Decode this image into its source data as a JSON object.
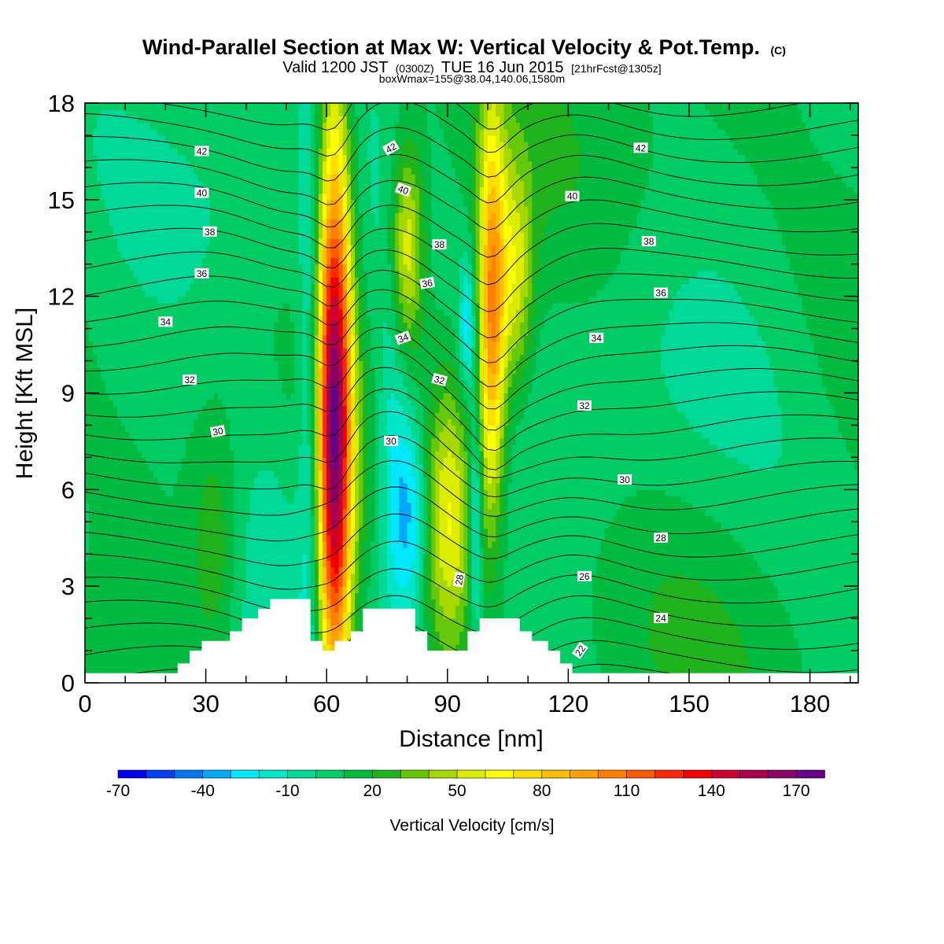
{
  "title": {
    "main": "Wind-Parallel Section at Max W: Vertical Velocity & Pot.Temp.",
    "main_mark": "(C)",
    "valid_prefix": "Valid 1200 JST",
    "valid_small": "(0300Z)",
    "valid_date": "TUE 16 Jun 2015",
    "forecast": "[21hrFcst@1305z]",
    "boxmax": "boxWmax=155@38.04,140.06,1580m"
  },
  "colors": {
    "palette": [
      "#0000f0",
      "#0040f0",
      "#0078f0",
      "#00aaf8",
      "#00e8ff",
      "#00e6c8",
      "#00d898",
      "#00cc66",
      "#00bb40",
      "#1fb41e",
      "#66c80a",
      "#a6d800",
      "#dcec00",
      "#ffff00",
      "#ffde00",
      "#ffbe00",
      "#ffa000",
      "#ff8000",
      "#ff5a00",
      "#ff2800",
      "#ee0000",
      "#cc0030",
      "#aa0050",
      "#880066",
      "#660088"
    ],
    "terrain": "#ffffff",
    "contour": "#000000",
    "background": "#00c060"
  },
  "chart_data": {
    "type": "heatmap",
    "xlabel": "Distance [nm]",
    "ylabel": "Height [Kft MSL]",
    "xlim": [
      0,
      192
    ],
    "ylim": [
      0,
      18
    ],
    "xticks": [
      0,
      30,
      60,
      90,
      120,
      150,
      180
    ],
    "yticks": [
      0,
      3,
      6,
      9,
      12,
      15,
      18
    ],
    "colorbar": {
      "label": "Vertical Velocity [cm/s]",
      "min": -70,
      "max": 180,
      "step": 10,
      "tick_labels": [
        -70,
        -40,
        -10,
        20,
        50,
        80,
        110,
        140,
        170
      ]
    },
    "vertical_velocity_features": [
      {
        "name": "updraft-1",
        "x": 62,
        "y": 8,
        "peak": 155,
        "x_halfwidth": 3,
        "y_halfwidth": 6.8
      },
      {
        "name": "updraft-2",
        "x": 101,
        "y": 11.5,
        "peak": 95,
        "x_halfwidth": 2.4,
        "y_halfwidth": 4.2
      },
      {
        "name": "updraft-3",
        "x": 80,
        "y": 13.5,
        "peak": 55,
        "x_halfwidth": 3,
        "y_halfwidth": 2.3
      },
      {
        "name": "updraft-4",
        "x": 107,
        "y": 12.5,
        "peak": 45,
        "x_halfwidth": 3,
        "y_halfwidth": 2.5
      },
      {
        "name": "updraft-5",
        "x": 90,
        "y": 5.2,
        "peak": 55,
        "x_halfwidth": 5,
        "y_halfwidth": 3.2
      },
      {
        "name": "updraft-6",
        "x": 32,
        "y": 4,
        "peak": 22,
        "x_halfwidth": 4,
        "y_halfwidth": 2.5
      },
      {
        "name": "downdraft-1",
        "x": 81,
        "y": 5.2,
        "peak": -50,
        "x_halfwidth": 4,
        "y_halfwidth": 2.5
      },
      {
        "name": "downdraft-2",
        "x": 97,
        "y": 5,
        "peak": -45,
        "x_halfwidth": 1.2,
        "y_halfwidth": 2.5
      },
      {
        "name": "downdraft-3",
        "x": 95,
        "y": 11,
        "peak": -35,
        "x_halfwidth": 1.5,
        "y_halfwidth": 1.5
      },
      {
        "name": "downdraft-4",
        "x": 56,
        "y": 8.5,
        "peak": -30,
        "x_halfwidth": 2,
        "y_halfwidth": 6
      },
      {
        "name": "downdraft-5",
        "x": 76,
        "y": 8,
        "peak": -22,
        "x_halfwidth": 3,
        "y_halfwidth": 4
      },
      {
        "name": "downdraft-6",
        "x": 47,
        "y": 6,
        "peak": -15,
        "x_halfwidth": 8,
        "y_halfwidth": 3
      }
    ],
    "potential_temperature_contours": {
      "unit": "C",
      "interval": 1,
      "range": [
        19,
        44
      ],
      "labels": [
        {
          "text": "42",
          "x": 29,
          "y": 16.5,
          "angle": 0
        },
        {
          "text": "40",
          "x": 29,
          "y": 15.2,
          "angle": 0
        },
        {
          "text": "38",
          "x": 31,
          "y": 14,
          "angle": 0
        },
        {
          "text": "36",
          "x": 29,
          "y": 12.7,
          "angle": 0
        },
        {
          "text": "34",
          "x": 20,
          "y": 11.2,
          "angle": 0
        },
        {
          "text": "32",
          "x": 26,
          "y": 9.4,
          "angle": 0
        },
        {
          "text": "30",
          "x": 33,
          "y": 7.8,
          "angle": -10
        },
        {
          "text": "42",
          "x": 76,
          "y": 16.6,
          "angle": -30
        },
        {
          "text": "40",
          "x": 79,
          "y": 15.3,
          "angle": 20
        },
        {
          "text": "38",
          "x": 88,
          "y": 13.6,
          "angle": 0
        },
        {
          "text": "36",
          "x": 85,
          "y": 12.4,
          "angle": -10
        },
        {
          "text": "34",
          "x": 79,
          "y": 10.7,
          "angle": -20
        },
        {
          "text": "32",
          "x": 88,
          "y": 9.4,
          "angle": 15
        },
        {
          "text": "30",
          "x": 76,
          "y": 7.5,
          "angle": 0
        },
        {
          "text": "28",
          "x": 93,
          "y": 3.2,
          "angle": -80
        },
        {
          "text": "42",
          "x": 138,
          "y": 16.6,
          "angle": 0
        },
        {
          "text": "40",
          "x": 121,
          "y": 15.1,
          "angle": 0
        },
        {
          "text": "38",
          "x": 140,
          "y": 13.7,
          "angle": 0
        },
        {
          "text": "36",
          "x": 143,
          "y": 12.1,
          "angle": 0
        },
        {
          "text": "34",
          "x": 127,
          "y": 10.7,
          "angle": 0
        },
        {
          "text": "32",
          "x": 124,
          "y": 8.6,
          "angle": 0
        },
        {
          "text": "30",
          "x": 134,
          "y": 6.3,
          "angle": 0
        },
        {
          "text": "28",
          "x": 143,
          "y": 4.5,
          "angle": 0
        },
        {
          "text": "26",
          "x": 124,
          "y": 3.3,
          "angle": 0
        },
        {
          "text": "24",
          "x": 143,
          "y": 2,
          "angle": 0
        },
        {
          "text": "22",
          "x": 123,
          "y": 1,
          "angle": -55
        }
      ]
    },
    "terrain_profile": {
      "x": [
        0,
        23,
        23,
        26,
        26,
        29,
        29,
        36,
        36,
        39,
        39,
        43,
        43,
        46,
        46,
        49,
        49,
        52,
        52,
        56,
        56,
        59,
        59,
        62,
        62,
        66,
        66,
        69,
        69,
        72,
        72,
        82,
        82,
        85,
        85,
        95,
        95,
        98,
        98,
        108,
        108,
        111,
        111,
        115,
        115,
        118,
        118,
        121,
        121,
        124,
        124,
        192
      ],
      "height": [
        0.3,
        0.3,
        0.6,
        0.6,
        1.0,
        1.0,
        1.3,
        1.3,
        1.6,
        1.6,
        2.0,
        2.0,
        2.3,
        2.3,
        2.6,
        2.6,
        2.6,
        2.6,
        2.6,
        2.6,
        1.3,
        1.3,
        1.0,
        1.0,
        1.3,
        1.3,
        1.6,
        1.6,
        2.3,
        2.3,
        2.3,
        2.3,
        1.6,
        1.6,
        1.0,
        1.0,
        1.6,
        1.6,
        2.0,
        2.0,
        1.6,
        1.6,
        1.3,
        1.3,
        1.0,
        1.0,
        0.6,
        0.6,
        0.3,
        0.3,
        0.3,
        0.3
      ]
    }
  }
}
